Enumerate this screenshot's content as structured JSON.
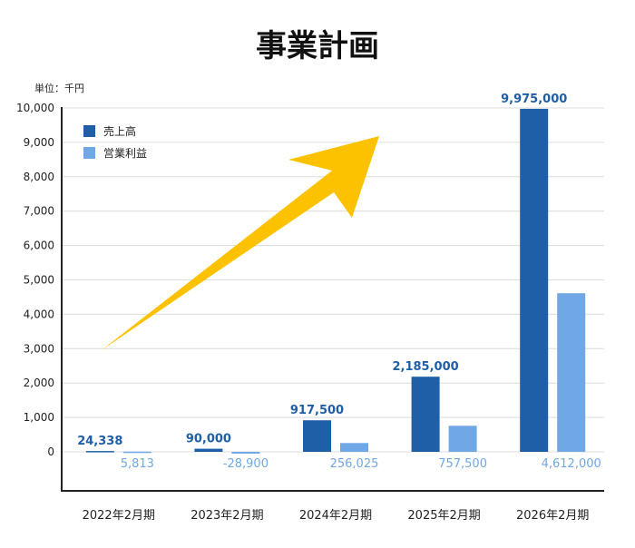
{
  "chart_data": {
    "type": "bar",
    "title": "事業計画",
    "unit_label": "単位：千円",
    "categories": [
      "2022年2月期",
      "2023年2月期",
      "2024年2月期",
      "2025年2月期",
      "2026年2月期"
    ],
    "yticks": [
      "0",
      "1,000",
      "2,000",
      "3,000",
      "4,000",
      "5,000",
      "6,000",
      "7,000",
      "8,000",
      "9,000",
      "10,000"
    ],
    "ylim": [
      0,
      10000
    ],
    "series": [
      {
        "name": "売上高",
        "color": "#1f5fa8",
        "label_color": "#1f5fa8",
        "values": [
          24.338,
          90,
          917.5,
          2185,
          9975
        ],
        "labels": [
          "24,338",
          "90,000",
          "917,500",
          "2,185,000",
          "9,975,000"
        ]
      },
      {
        "name": "営業利益",
        "color": "#6fa8e4",
        "label_color": "#6fa8e4",
        "values": [
          5.813,
          -28.9,
          256.025,
          757.5,
          4612
        ],
        "labels": [
          "5,813",
          "-28,900",
          "256,025",
          "757,500",
          "4,612,000"
        ]
      }
    ],
    "grid": true,
    "legend": "top-left",
    "annotation": "yellow-up-trend-arrow",
    "arrow_color": "#fcc200"
  }
}
